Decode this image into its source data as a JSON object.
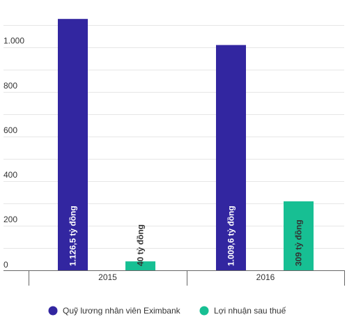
{
  "chart_data": {
    "type": "bar",
    "categories": [
      "2015",
      "2016"
    ],
    "series": [
      {
        "name": "Quỹ lương nhân viên Eximbank",
        "values": [
          1126.5,
          1009.6
        ],
        "labels": [
          "1.126,5 tỷ đồng",
          "1.009,6 tỷ đồng"
        ],
        "color": "#3226a0",
        "label_color": "#ffffff"
      },
      {
        "name": "Lợi nhuận sau thuế",
        "values": [
          40,
          309
        ],
        "labels": [
          "40 tỷ đồng",
          "309 tỷ đồng"
        ],
        "color": "#17bf93",
        "label_color": "#333333"
      }
    ],
    "y_ticks": [
      {
        "value": 0,
        "label": "0"
      },
      {
        "value": 200,
        "label": "200"
      },
      {
        "value": 400,
        "label": "400"
      },
      {
        "value": 600,
        "label": "600"
      },
      {
        "value": 800,
        "label": "800"
      },
      {
        "value": 1000,
        "label": "1.000"
      }
    ],
    "ylim": [
      0,
      1100
    ],
    "grid": true,
    "legend_position": "bottom",
    "title": "",
    "xlabel": "",
    "ylabel": ""
  }
}
